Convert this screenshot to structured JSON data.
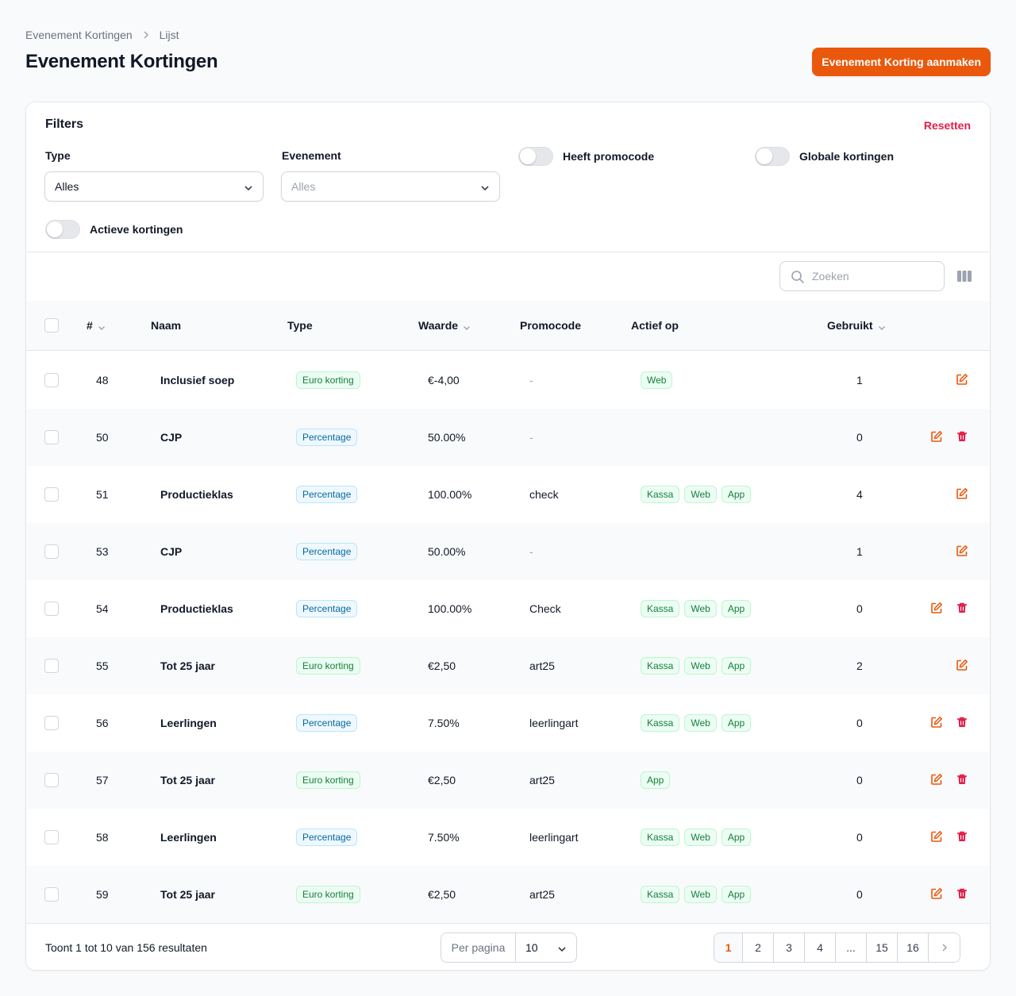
{
  "breadcrumb": {
    "root": "Evenement Kortingen",
    "current": "Lijst"
  },
  "page_title": "Evenement Kortingen",
  "create_button": "Evenement Korting aanmaken",
  "filters": {
    "title": "Filters",
    "reset": "Resetten",
    "type_label": "Type",
    "type_value": "Alles",
    "event_label": "Evenement",
    "event_placeholder": "Alles",
    "toggle_promo": "Heeft promocode",
    "toggle_global": "Globale kortingen",
    "toggle_active": "Actieve kortingen"
  },
  "search": {
    "placeholder": "Zoeken"
  },
  "table": {
    "headers": {
      "id": "#",
      "name": "Naam",
      "type": "Type",
      "value": "Waarde",
      "promo": "Promocode",
      "active_on": "Actief op",
      "used": "Gebruikt"
    },
    "rows": [
      {
        "id": "48",
        "name": "Inclusief soep",
        "type": "Euro korting",
        "value": "€-4,00",
        "promo": "-",
        "channels": [
          "Web"
        ],
        "used": "1",
        "deletable": false
      },
      {
        "id": "50",
        "name": "CJP",
        "type": "Percentage",
        "value": "50.00%",
        "promo": "-",
        "channels": [],
        "used": "0",
        "deletable": true
      },
      {
        "id": "51",
        "name": "Productieklas",
        "type": "Percentage",
        "value": "100.00%",
        "promo": "check",
        "channels": [
          "Kassa",
          "Web",
          "App"
        ],
        "used": "4",
        "deletable": false
      },
      {
        "id": "53",
        "name": "CJP",
        "type": "Percentage",
        "value": "50.00%",
        "promo": "-",
        "channels": [],
        "used": "1",
        "deletable": false
      },
      {
        "id": "54",
        "name": "Productieklas",
        "type": "Percentage",
        "value": "100.00%",
        "promo": "Check",
        "channels": [
          "Kassa",
          "Web",
          "App"
        ],
        "used": "0",
        "deletable": true
      },
      {
        "id": "55",
        "name": "Tot 25 jaar",
        "type": "Euro korting",
        "value": "€2,50",
        "promo": "art25",
        "channels": [
          "Kassa",
          "Web",
          "App"
        ],
        "used": "2",
        "deletable": false
      },
      {
        "id": "56",
        "name": "Leerlingen",
        "type": "Percentage",
        "value": "7.50%",
        "promo": "leerlingart",
        "channels": [
          "Kassa",
          "Web",
          "App"
        ],
        "used": "0",
        "deletable": true
      },
      {
        "id": "57",
        "name": "Tot 25 jaar",
        "type": "Euro korting",
        "value": "€2,50",
        "promo": "art25",
        "channels": [
          "App"
        ],
        "used": "0",
        "deletable": true
      },
      {
        "id": "58",
        "name": "Leerlingen",
        "type": "Percentage",
        "value": "7.50%",
        "promo": "leerlingart",
        "channels": [
          "Kassa",
          "Web",
          "App"
        ],
        "used": "0",
        "deletable": true
      },
      {
        "id": "59",
        "name": "Tot 25 jaar",
        "type": "Euro korting",
        "value": "€2,50",
        "promo": "art25",
        "channels": [
          "Kassa",
          "Web",
          "App"
        ],
        "used": "0",
        "deletable": true
      }
    ]
  },
  "footer": {
    "results": "Toont 1 tot 10 van 156 resultaten",
    "per_page_label": "Per pagina",
    "per_page_value": "10",
    "pages": [
      "1",
      "2",
      "3",
      "4",
      "...",
      "15",
      "16"
    ],
    "active_page": "1"
  },
  "colors": {
    "accent": "#ea580c",
    "danger": "#e11d48",
    "euro_badge": "#15803d",
    "percent_badge": "#0369a1"
  }
}
